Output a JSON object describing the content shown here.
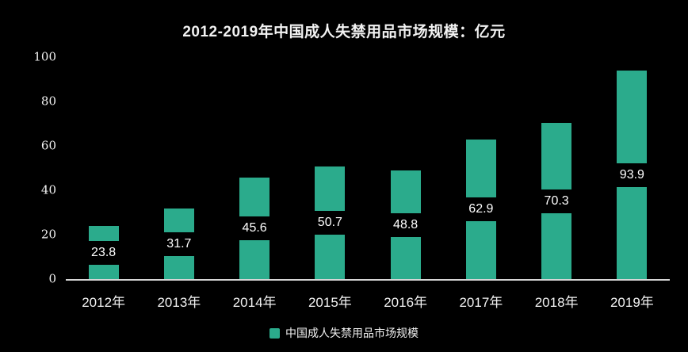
{
  "title": "2012-2019年中国成人失禁用品市场规模：亿元",
  "colors": {
    "background": "#000000",
    "bar": "#2bab8c",
    "text": "#f2f2f2",
    "axis_line": "#d6d6d6",
    "value_label_bg": "#000000",
    "value_label_text": "#ffffff"
  },
  "legend": {
    "label": "中国成人失禁用品市场规模",
    "swatch_color": "#2bab8c"
  },
  "chart_data": {
    "type": "bar",
    "title": "2012-2019年中国成人失禁用品市场规模：亿元",
    "categories": [
      "2012年",
      "2013年",
      "2014年",
      "2015年",
      "2016年",
      "2017年",
      "2018年",
      "2019年"
    ],
    "values": [
      23.8,
      31.7,
      45.6,
      50.7,
      48.8,
      62.9,
      70.3,
      93.9
    ],
    "series_name": "中国成人失禁用品市场规模",
    "xlabel": "",
    "ylabel": "",
    "ylim": [
      0,
      100
    ],
    "yticks": [
      0,
      20,
      40,
      60,
      80,
      100
    ],
    "grid": false,
    "legend_position": "bottom",
    "data_labels": "inside-center",
    "background": "dark"
  }
}
